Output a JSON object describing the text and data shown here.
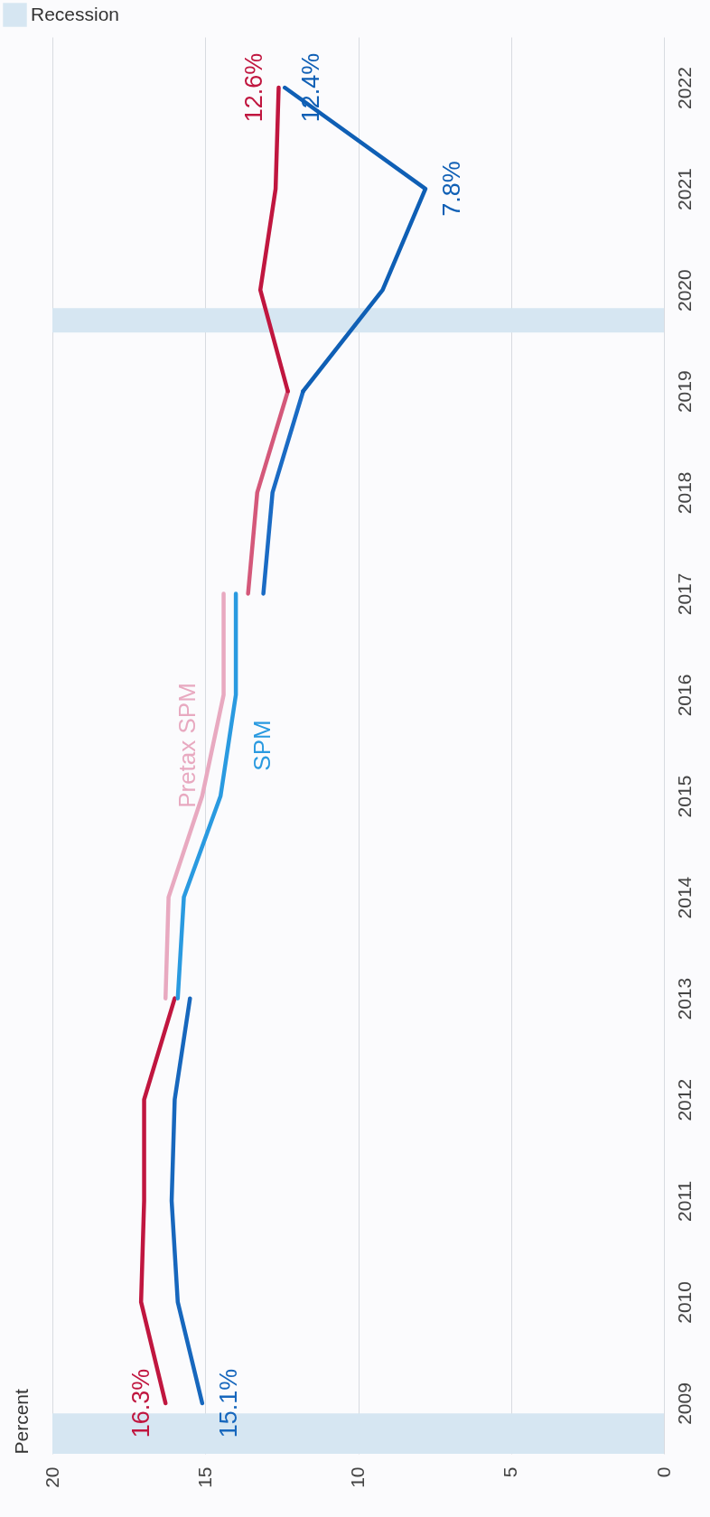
{
  "chart_data": {
    "type": "line",
    "ylabel": "Percent",
    "xlim": [
      20,
      0
    ],
    "xticks": [
      20,
      15,
      10,
      5,
      0
    ],
    "ylim": [
      2008.5,
      2022.5
    ],
    "yticks": [
      2009,
      2010,
      2011,
      2012,
      2013,
      2014,
      2015,
      2016,
      2017,
      2018,
      2019,
      2020,
      2021,
      2022
    ],
    "grid": "x",
    "legend": "top left",
    "series": [
      {
        "color": "#c0163f",
        "x": [
          16.3,
          17.1,
          17.0,
          17.0,
          16.0
        ],
        "values": [
          2009,
          2010,
          2011,
          2012,
          2013
        ]
      },
      {
        "name": "Pretax SPM",
        "color": "#e8a9c0",
        "x": [
          16.3,
          16.2,
          15.1,
          14.4,
          14.4
        ],
        "values": [
          2013,
          2014,
          2015,
          2016,
          2017
        ]
      },
      {
        "color": "#d4587a",
        "x": [
          13.6,
          13.3,
          12.3
        ],
        "values": [
          2017,
          2018,
          2019
        ]
      },
      {
        "color": "#c0163f",
        "x": [
          12.3,
          13.2,
          12.7,
          12.6
        ],
        "values": [
          2019,
          2020,
          2021,
          2022
        ]
      },
      {
        "color": "#1767bd",
        "x": [
          15.1,
          15.9,
          16.1,
          16.0,
          15.5
        ],
        "values": [
          2009,
          2010,
          2011,
          2012,
          2013
        ]
      },
      {
        "name": "SPM",
        "color": "#2a9ae0",
        "x": [
          15.9,
          15.7,
          14.5,
          14.0,
          14.0
        ],
        "values": [
          2013,
          2014,
          2015,
          2016,
          2017
        ]
      },
      {
        "color": "#1a6bc4",
        "x": [
          13.1,
          12.8,
          11.8
        ],
        "values": [
          2017,
          2018,
          2019
        ]
      },
      {
        "color": "#0f5fb5",
        "x": [
          11.8,
          9.2,
          7.8,
          12.4
        ],
        "values": [
          2019,
          2020,
          2021,
          2022
        ]
      }
    ],
    "bands": [
      {
        "axis": "y",
        "from": 2008.5,
        "to": 2008.9,
        "label": "Recession",
        "color": "#d6e6f2"
      },
      {
        "axis": "y",
        "from": 2019.58,
        "to": 2019.82,
        "color": "#d6e6f2"
      }
    ],
    "annotations": [
      {
        "text": "16.3%",
        "x": 16.3,
        "y": 2009
      },
      {
        "text": "15.1%",
        "x": 15.1,
        "y": 2009
      },
      {
        "text": "12.6%",
        "x": 12.6,
        "y": 2022
      },
      {
        "text": "12.4%",
        "x": 12.4,
        "y": 2022
      },
      {
        "text": "7.8%",
        "x": 7.8,
        "y": 2021
      }
    ]
  }
}
